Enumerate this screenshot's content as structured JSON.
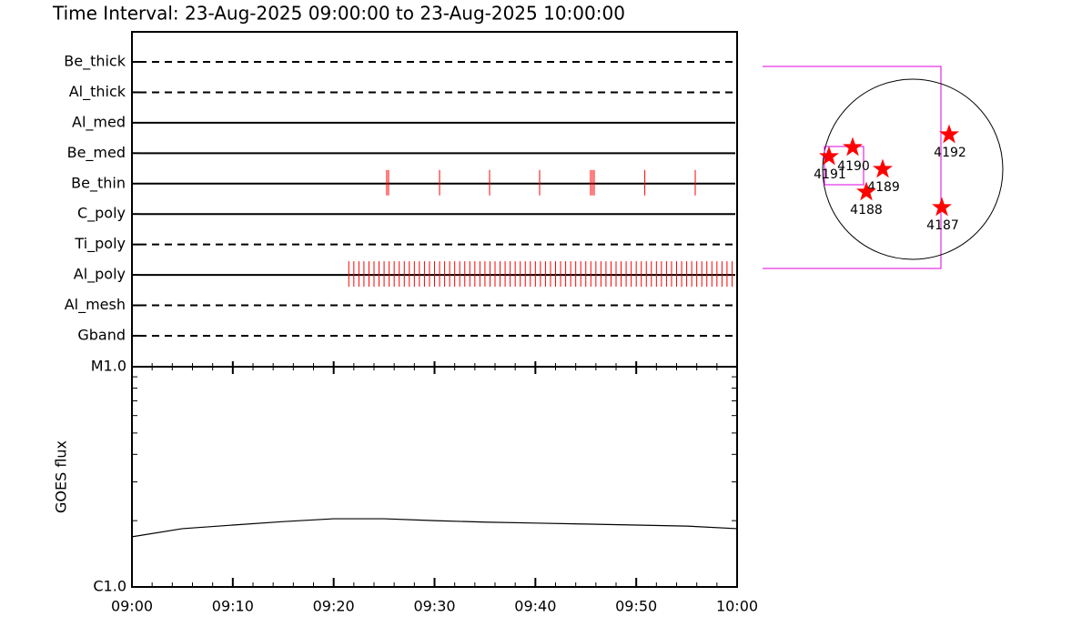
{
  "title": "Time Interval: 23-Aug-2025 09:00:00 to 23-Aug-2025 10:00:00",
  "chart_data": [
    {
      "type": "events",
      "categories": [
        "Be_thick",
        "Al_thick",
        "Al_med",
        "Be_med",
        "Be_thin",
        "C_poly",
        "Ti_poly",
        "Al_poly",
        "Al_mesh",
        "Gband"
      ],
      "line_styles": [
        "dashed",
        "dashed",
        "solid",
        "solid",
        "solid",
        "solid",
        "dashed",
        "solid",
        "dashed",
        "dashed"
      ],
      "color": "#ff0000",
      "xlim": [
        0,
        60
      ],
      "event_x": [
        [],
        [],
        [],
        [],
        [
          25.26,
          25.44,
          30.5,
          35.46,
          40.42,
          45.47,
          45.65,
          45.83,
          50.85,
          55.85
        ],
        [],
        [],
        [
          21.5,
          22,
          22.5,
          23,
          23.5,
          24,
          24.5,
          25,
          25.5,
          26,
          26.5,
          27,
          27.5,
          28,
          28.5,
          29,
          29.5,
          30,
          30.5,
          31,
          31.5,
          32,
          32.5,
          33,
          33.5,
          34,
          34.5,
          35,
          35.5,
          36,
          36.5,
          37,
          37.5,
          38,
          38.5,
          39,
          39.5,
          40,
          40.5,
          41,
          41.5,
          42,
          42.5,
          43,
          43.5,
          44,
          44.5,
          45,
          45.5,
          46,
          46.5,
          47,
          47.5,
          48,
          48.5,
          49,
          49.5,
          50,
          50.5,
          51,
          51.5,
          52,
          52.5,
          53,
          53.5,
          54,
          54.5,
          55,
          55.5,
          56,
          56.5,
          57,
          57.5,
          58,
          58.5,
          59,
          59.5
        ],
        [],
        []
      ]
    },
    {
      "type": "line",
      "y_label": "GOES flux",
      "log_y": true,
      "color": "#000000",
      "x": [
        0,
        5,
        10,
        15,
        20,
        25,
        30,
        35,
        40,
        45,
        50,
        55,
        60
      ],
      "values": [
        1.69e-06,
        1.84e-06,
        1.91e-06,
        1.98e-06,
        2.04e-06,
        2.04e-06,
        2e-06,
        1.97e-06,
        1.95e-06,
        1.93e-06,
        1.91e-06,
        1.89e-06,
        1.84e-06
      ],
      "xlim": [
        0,
        60
      ],
      "ylim": [
        1e-06,
        1e-05
      ],
      "xticks": [
        {
          "value": 0,
          "label": "09:00"
        },
        {
          "value": 10,
          "label": "09:10"
        },
        {
          "value": 20,
          "label": "09:20"
        },
        {
          "value": 30,
          "label": "09:30"
        },
        {
          "value": 40,
          "label": "09:40"
        },
        {
          "value": 50,
          "label": "09:50"
        },
        {
          "value": 60,
          "label": "10:00"
        }
      ],
      "yticks": [
        {
          "value": 1e-06,
          "label": "C1.0"
        },
        {
          "value": 1e-05,
          "label": "M1.0"
        }
      ]
    }
  ],
  "map": {
    "regions": [
      "4192",
      "4190",
      "4191",
      "4189",
      "4188",
      "4187"
    ]
  }
}
